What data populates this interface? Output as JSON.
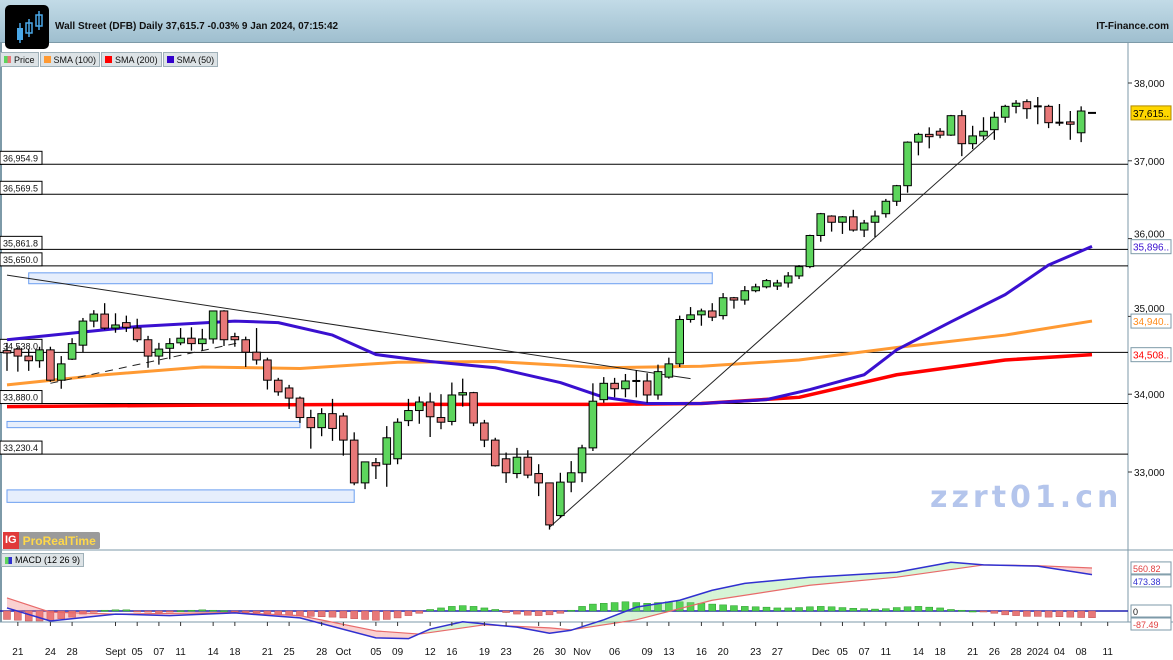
{
  "header": {
    "title": "Wall Street (DFB) Daily 37,615.7 -0.03% 9 Jan 2024, 07:15:42",
    "brand": "IT-Finance.com"
  },
  "legend": [
    {
      "label": "Price",
      "color": "#5dd55d"
    },
    {
      "label": "SMA (100)",
      "color": "#ff9a33"
    },
    {
      "label": "SMA (200)",
      "color": "#ff0000"
    },
    {
      "label": "SMA (50)",
      "color": "#3300cc"
    }
  ],
  "colors": {
    "up": "#5dd55d",
    "down": "#e87878",
    "sma50": "#3a10d0",
    "sma100": "#ff9a33",
    "sma200": "#ff0000",
    "zone": "#e6eefc",
    "zone_border": "#6a9ef0",
    "last_tag": "#ffd700"
  },
  "provider": {
    "ig": "IG",
    "name": "ProRealTime"
  },
  "price_axis": {
    "ticks": [
      "38,000",
      "37,000",
      "36,000",
      "35,000",
      "34,000",
      "33,000"
    ],
    "tick_values": [
      38000,
      37000,
      36000,
      35000,
      34000,
      33000
    ]
  },
  "value_tags": [
    {
      "label": "37,615..",
      "value": 37615.7,
      "kind": "last"
    },
    {
      "label": "35,896..",
      "value": 35896,
      "kind": "sma50"
    },
    {
      "label": "34,940..",
      "value": 34940,
      "kind": "sma100"
    },
    {
      "label": "34,508..",
      "value": 34508,
      "kind": "sma200"
    }
  ],
  "levels": [
    {
      "label": "36,954.9",
      "value": 36954.9
    },
    {
      "label": "36,569.5",
      "value": 36569.5
    },
    {
      "label": "35,861.8",
      "value": 35861.8
    },
    {
      "label": "35,650.0",
      "value": 35650.0
    },
    {
      "label": "34,538.0",
      "value": 34538.0
    },
    {
      "label": "33,880.0",
      "value": 33880.0
    },
    {
      "label": "33,230.4",
      "value": 33230.4
    }
  ],
  "zones": [
    {
      "from_index": 2,
      "to_index": 65,
      "high": 35560,
      "low": 35420
    },
    {
      "from_index": 0,
      "to_index": 27,
      "high": 33650,
      "low": 33570
    },
    {
      "from_index": 0,
      "to_index": 32,
      "high": 32770,
      "low": 32610
    }
  ],
  "trendlines": [
    {
      "from": [
        0,
        35530
      ],
      "to": [
        63,
        34200
      ],
      "style": "solid"
    },
    {
      "from": [
        4,
        34140
      ],
      "to": [
        22,
        34680
      ],
      "style": "dashed"
    },
    {
      "from": [
        50,
        32290
      ],
      "to": [
        91,
        37380
      ],
      "style": "solid"
    }
  ],
  "chart_data": {
    "type": "candlestick",
    "ohlc": [
      [
        34560,
        34660,
        34300,
        34530
      ],
      [
        34580,
        34610,
        34290,
        34490
      ],
      [
        34490,
        34580,
        34300,
        34430
      ],
      [
        34430,
        34610,
        34340,
        34570
      ],
      [
        34570,
        34610,
        34160,
        34180
      ],
      [
        34180,
        34490,
        34070,
        34390
      ],
      [
        34450,
        34720,
        34440,
        34650
      ],
      [
        34630,
        34980,
        34540,
        34940
      ],
      [
        34940,
        35080,
        34860,
        35030
      ],
      [
        35030,
        35170,
        34830,
        34850
      ],
      [
        34850,
        35040,
        34790,
        34890
      ],
      [
        34920,
        35010,
        34800,
        34860
      ],
      [
        34850,
        34970,
        34670,
        34700
      ],
      [
        34700,
        34750,
        34340,
        34490
      ],
      [
        34490,
        34660,
        34380,
        34580
      ],
      [
        34590,
        34720,
        34450,
        34650
      ],
      [
        34660,
        34850,
        34630,
        34720
      ],
      [
        34720,
        34860,
        34560,
        34650
      ],
      [
        34650,
        34840,
        34560,
        34710
      ],
      [
        34710,
        35070,
        34650,
        35070
      ],
      [
        35070,
        35080,
        34620,
        34700
      ],
      [
        34740,
        34790,
        34610,
        34700
      ],
      [
        34700,
        34740,
        34350,
        34540
      ],
      [
        34540,
        34850,
        34380,
        34440
      ],
      [
        34440,
        34470,
        34060,
        34180
      ],
      [
        34180,
        34210,
        33980,
        34030
      ],
      [
        34080,
        34120,
        33810,
        33950
      ],
      [
        33950,
        33970,
        33630,
        33700
      ],
      [
        33700,
        33800,
        33300,
        33570
      ],
      [
        33570,
        33820,
        33460,
        33750
      ],
      [
        33750,
        33940,
        33400,
        33560
      ],
      [
        33720,
        33760,
        33210,
        33410
      ],
      [
        33410,
        33510,
        32830,
        32860
      ],
      [
        32860,
        33130,
        32780,
        33130
      ],
      [
        33120,
        33180,
        32910,
        33080
      ],
      [
        33100,
        33590,
        32810,
        33440
      ],
      [
        33170,
        33690,
        33100,
        33640
      ],
      [
        33660,
        33940,
        33590,
        33790
      ],
      [
        33790,
        33970,
        33620,
        33900
      ],
      [
        33900,
        34020,
        33450,
        33710
      ],
      [
        33700,
        34000,
        33550,
        33640
      ],
      [
        33650,
        34150,
        33600,
        33990
      ],
      [
        33990,
        34200,
        33840,
        34020
      ],
      [
        34020,
        34030,
        33590,
        33630
      ],
      [
        33630,
        33670,
        33320,
        33410
      ],
      [
        33410,
        33440,
        33070,
        33080
      ],
      [
        33170,
        33250,
        32860,
        32990
      ],
      [
        32980,
        33310,
        32920,
        33190
      ],
      [
        33190,
        33280,
        32920,
        32960
      ],
      [
        32980,
        33100,
        32690,
        32860
      ],
      [
        32860,
        32860,
        32260,
        32320
      ],
      [
        32440,
        32990,
        32410,
        32870
      ],
      [
        32870,
        33140,
        32740,
        32990
      ],
      [
        32990,
        33350,
        32870,
        33310
      ],
      [
        33310,
        34140,
        33270,
        33910
      ],
      [
        33930,
        34220,
        33890,
        34140
      ],
      [
        34140,
        34210,
        33960,
        34070
      ],
      [
        34070,
        34260,
        33960,
        34170
      ],
      [
        34170,
        34310,
        33960,
        34170
      ],
      [
        34170,
        34270,
        33890,
        33990
      ],
      [
        33990,
        34380,
        33930,
        34290
      ],
      [
        34220,
        34470,
        34200,
        34390
      ],
      [
        34390,
        35010,
        34350,
        34960
      ],
      [
        34960,
        35120,
        34920,
        35020
      ],
      [
        35020,
        35100,
        34880,
        35070
      ],
      [
        35070,
        35170,
        34940,
        34990
      ],
      [
        35010,
        35300,
        34960,
        35240
      ],
      [
        35240,
        35250,
        35100,
        35210
      ],
      [
        35210,
        35390,
        35150,
        35330
      ],
      [
        35330,
        35420,
        35310,
        35380
      ],
      [
        35380,
        35480,
        35360,
        35460
      ],
      [
        35390,
        35470,
        35340,
        35430
      ],
      [
        35430,
        35570,
        35370,
        35520
      ],
      [
        35520,
        35660,
        35480,
        35640
      ],
      [
        35640,
        36050,
        35620,
        36040
      ],
      [
        36040,
        36330,
        35960,
        36320
      ],
      [
        36290,
        36300,
        36090,
        36210
      ],
      [
        36210,
        36290,
        36060,
        36280
      ],
      [
        36280,
        36370,
        36090,
        36110
      ],
      [
        36110,
        36240,
        36020,
        36200
      ],
      [
        36210,
        36360,
        36020,
        36290
      ],
      [
        36320,
        36510,
        36270,
        36480
      ],
      [
        36480,
        36690,
        36420,
        36680
      ],
      [
        36680,
        37250,
        36590,
        37240
      ],
      [
        37240,
        37360,
        37070,
        37340
      ],
      [
        37340,
        37430,
        37160,
        37310
      ],
      [
        37380,
        37420,
        37290,
        37330
      ],
      [
        37330,
        37590,
        37320,
        37580
      ],
      [
        37580,
        37650,
        37060,
        37220
      ],
      [
        37220,
        37450,
        37150,
        37320
      ],
      [
        37320,
        37560,
        37270,
        37380
      ],
      [
        37400,
        37630,
        37270,
        37560
      ],
      [
        37560,
        37720,
        37490,
        37700
      ],
      [
        37700,
        37780,
        37610,
        37740
      ],
      [
        37760,
        37790,
        37540,
        37670
      ],
      [
        37700,
        37820,
        37470,
        37700
      ],
      [
        37700,
        37720,
        37420,
        37490
      ],
      [
        37490,
        37730,
        37450,
        37490
      ],
      [
        37500,
        37640,
        37270,
        37470
      ],
      [
        37360,
        37700,
        37240,
        37640
      ],
      [
        37615.7,
        37615.7,
        37615.7,
        37615.7
      ]
    ],
    "sma50": [
      [
        0,
        34700
      ],
      [
        7,
        34800
      ],
      [
        12,
        34870
      ],
      [
        21,
        34940
      ],
      [
        25,
        34920
      ],
      [
        30,
        34760
      ],
      [
        34,
        34510
      ],
      [
        39,
        34420
      ],
      [
        45,
        34340
      ],
      [
        51,
        34150
      ],
      [
        55,
        33960
      ],
      [
        59,
        33880
      ],
      [
        64,
        33880
      ],
      [
        70,
        33930
      ],
      [
        74,
        34060
      ],
      [
        79,
        34250
      ],
      [
        82,
        34570
      ],
      [
        87,
        34930
      ],
      [
        92,
        35280
      ],
      [
        96,
        35660
      ],
      [
        100,
        35900
      ]
    ],
    "sma100": [
      [
        0,
        34120
      ],
      [
        9,
        34250
      ],
      [
        18,
        34350
      ],
      [
        27,
        34330
      ],
      [
        36,
        34410
      ],
      [
        45,
        34420
      ],
      [
        55,
        34340
      ],
      [
        64,
        34360
      ],
      [
        73,
        34440
      ],
      [
        82,
        34600
      ],
      [
        92,
        34760
      ],
      [
        100,
        34940
      ]
    ],
    "sma200": [
      [
        0,
        33840
      ],
      [
        18,
        33860
      ],
      [
        36,
        33870
      ],
      [
        55,
        33870
      ],
      [
        64,
        33880
      ],
      [
        73,
        33960
      ],
      [
        82,
        34250
      ],
      [
        92,
        34440
      ],
      [
        100,
        34508
      ]
    ],
    "ylim": [
      32200,
      38400
    ],
    "x_ticks": [
      {
        "i": 1,
        "label": "21"
      },
      {
        "i": 4,
        "label": "24"
      },
      {
        "i": 6,
        "label": "28"
      },
      {
        "i": 10,
        "label": "Sept"
      },
      {
        "i": 12,
        "label": "05"
      },
      {
        "i": 14,
        "label": "07"
      },
      {
        "i": 16,
        "label": "11"
      },
      {
        "i": 19,
        "label": "14"
      },
      {
        "i": 21,
        "label": "18"
      },
      {
        "i": 24,
        "label": "21"
      },
      {
        "i": 26,
        "label": "25"
      },
      {
        "i": 29,
        "label": "28"
      },
      {
        "i": 31,
        "label": "Oct"
      },
      {
        "i": 34,
        "label": "05"
      },
      {
        "i": 36,
        "label": "09"
      },
      {
        "i": 39,
        "label": "12"
      },
      {
        "i": 41,
        "label": "16"
      },
      {
        "i": 44,
        "label": "19"
      },
      {
        "i": 46,
        "label": "23"
      },
      {
        "i": 49,
        "label": "26"
      },
      {
        "i": 51,
        "label": "30"
      },
      {
        "i": 53,
        "label": "Nov"
      },
      {
        "i": 56,
        "label": "06"
      },
      {
        "i": 59,
        "label": "09"
      },
      {
        "i": 61,
        "label": "13"
      },
      {
        "i": 64,
        "label": "16"
      },
      {
        "i": 66,
        "label": "20"
      },
      {
        "i": 69,
        "label": "23"
      },
      {
        "i": 71,
        "label": "27"
      },
      {
        "i": 75,
        "label": "Dec"
      },
      {
        "i": 77,
        "label": "05"
      },
      {
        "i": 79,
        "label": "07"
      },
      {
        "i": 81,
        "label": "11"
      },
      {
        "i": 84,
        "label": "14"
      },
      {
        "i": 86,
        "label": "18"
      },
      {
        "i": 89,
        "label": "21"
      },
      {
        "i": 91,
        "label": "26"
      },
      {
        "i": 93,
        "label": "28"
      },
      {
        "i": 95,
        "label": "2024"
      },
      {
        "i": 97,
        "label": "04"
      },
      {
        "i": 99,
        "label": "08"
      },
      {
        "i": 102,
        "label": "11"
      }
    ]
  },
  "macd": {
    "label": "MACD (12 26 9)",
    "tags": [
      {
        "label": "560.82",
        "value": 560.82,
        "color": "#e04040"
      },
      {
        "label": "473.38",
        "value": 473.38,
        "color": "#3030d0"
      },
      {
        "label": "0",
        "value": 0,
        "color": "#111"
      },
      {
        "label": "-87.49",
        "value": -87.49,
        "color": "#e04040"
      }
    ],
    "macd_line": [
      [
        0,
        40
      ],
      [
        4,
        -130
      ],
      [
        10,
        -40
      ],
      [
        15,
        -60
      ],
      [
        21,
        -25
      ],
      [
        27,
        -90
      ],
      [
        34,
        -350
      ],
      [
        37,
        -360
      ],
      [
        39,
        -235
      ],
      [
        42,
        -140
      ],
      [
        47,
        -210
      ],
      [
        50,
        -290
      ],
      [
        52,
        -250
      ],
      [
        55,
        -115
      ],
      [
        58,
        50
      ],
      [
        62,
        140
      ],
      [
        65,
        270
      ],
      [
        68,
        360
      ],
      [
        74,
        440
      ],
      [
        82,
        505
      ],
      [
        87,
        635
      ],
      [
        90,
        600
      ],
      [
        95,
        585
      ],
      [
        100,
        473
      ]
    ],
    "signal_line": [
      [
        0,
        170
      ],
      [
        4,
        -15
      ],
      [
        10,
        -40
      ],
      [
        21,
        -20
      ],
      [
        27,
        -60
      ],
      [
        34,
        -260
      ],
      [
        38,
        -300
      ],
      [
        44,
        -180
      ],
      [
        50,
        -220
      ],
      [
        52,
        -245
      ],
      [
        58,
        -115
      ],
      [
        65,
        140
      ],
      [
        74,
        335
      ],
      [
        82,
        440
      ],
      [
        90,
        600
      ],
      [
        95,
        590
      ],
      [
        100,
        560
      ]
    ],
    "histogram": [
      -110,
      -120,
      -130,
      -130,
      -120,
      -100,
      -80,
      -40,
      -15,
      10,
      15,
      15,
      -10,
      -15,
      -20,
      -10,
      5,
      10,
      15,
      10,
      5,
      -5,
      -15,
      -25,
      -35,
      -45,
      -55,
      -65,
      -70,
      -75,
      -80,
      -90,
      -100,
      -110,
      -120,
      -110,
      -90,
      -60,
      -30,
      20,
      40,
      60,
      70,
      60,
      40,
      20,
      -20,
      -40,
      -55,
      -60,
      -50,
      -30,
      10,
      60,
      90,
      100,
      110,
      120,
      110,
      100,
      110,
      120,
      120,
      110,
      100,
      90,
      80,
      70,
      60,
      55,
      50,
      40,
      40,
      45,
      55,
      60,
      55,
      45,
      35,
      30,
      25,
      30,
      45,
      55,
      60,
      50,
      40,
      20,
      10,
      0,
      -10,
      -30,
      -50,
      -60,
      -70,
      -70,
      -80,
      -75,
      -80,
      -85,
      -87
    ]
  },
  "watermark": "zzrt01.cn"
}
